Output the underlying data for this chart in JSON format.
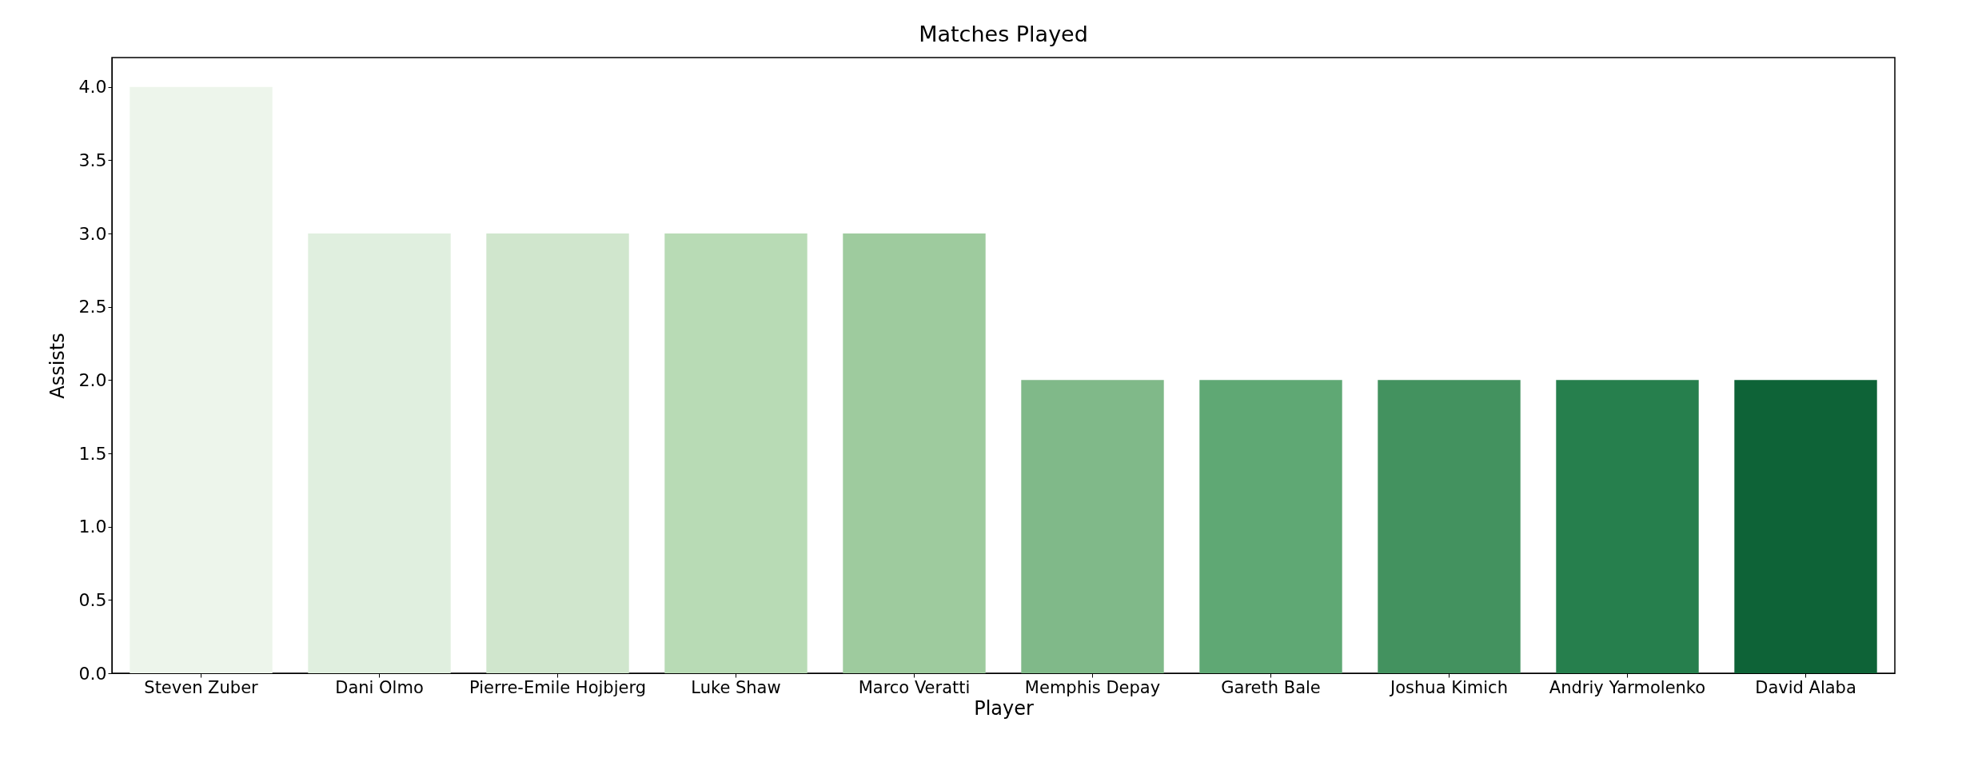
{
  "chart_data": {
    "type": "bar",
    "title": "Matches Played",
    "xlabel": "Player",
    "ylabel": "Assists",
    "categories": [
      "Steven Zuber",
      "Dani Olmo",
      "Pierre-Emile Hojbjerg",
      "Luke Shaw",
      "Marco Veratti",
      "Memphis Depay",
      "Gareth Bale",
      "Joshua  Kimich",
      "Andriy Yarmolenko",
      "David Alaba"
    ],
    "values": [
      4,
      3,
      3,
      3,
      3,
      2,
      2,
      2,
      2,
      2
    ],
    "colors": [
      "#edf5eb",
      "#e0efdf",
      "#d0e6cd",
      "#b8dbb5",
      "#9ecb9e",
      "#80b989",
      "#5fa874",
      "#43925f",
      "#267f4d",
      "#0e6337"
    ],
    "ylim": [
      0,
      4.2
    ],
    "yticks": [
      {
        "value": 0,
        "label": "0.0"
      },
      {
        "value": 0.5,
        "label": "0.5"
      },
      {
        "value": 1,
        "label": "1.0"
      },
      {
        "value": 1.5,
        "label": "1.5"
      },
      {
        "value": 2,
        "label": "2.0"
      },
      {
        "value": 2.5,
        "label": "2.5"
      },
      {
        "value": 3,
        "label": "3.0"
      },
      {
        "value": 3.5,
        "label": "3.5"
      },
      {
        "value": 4,
        "label": "4.0"
      }
    ],
    "grid": false
  }
}
